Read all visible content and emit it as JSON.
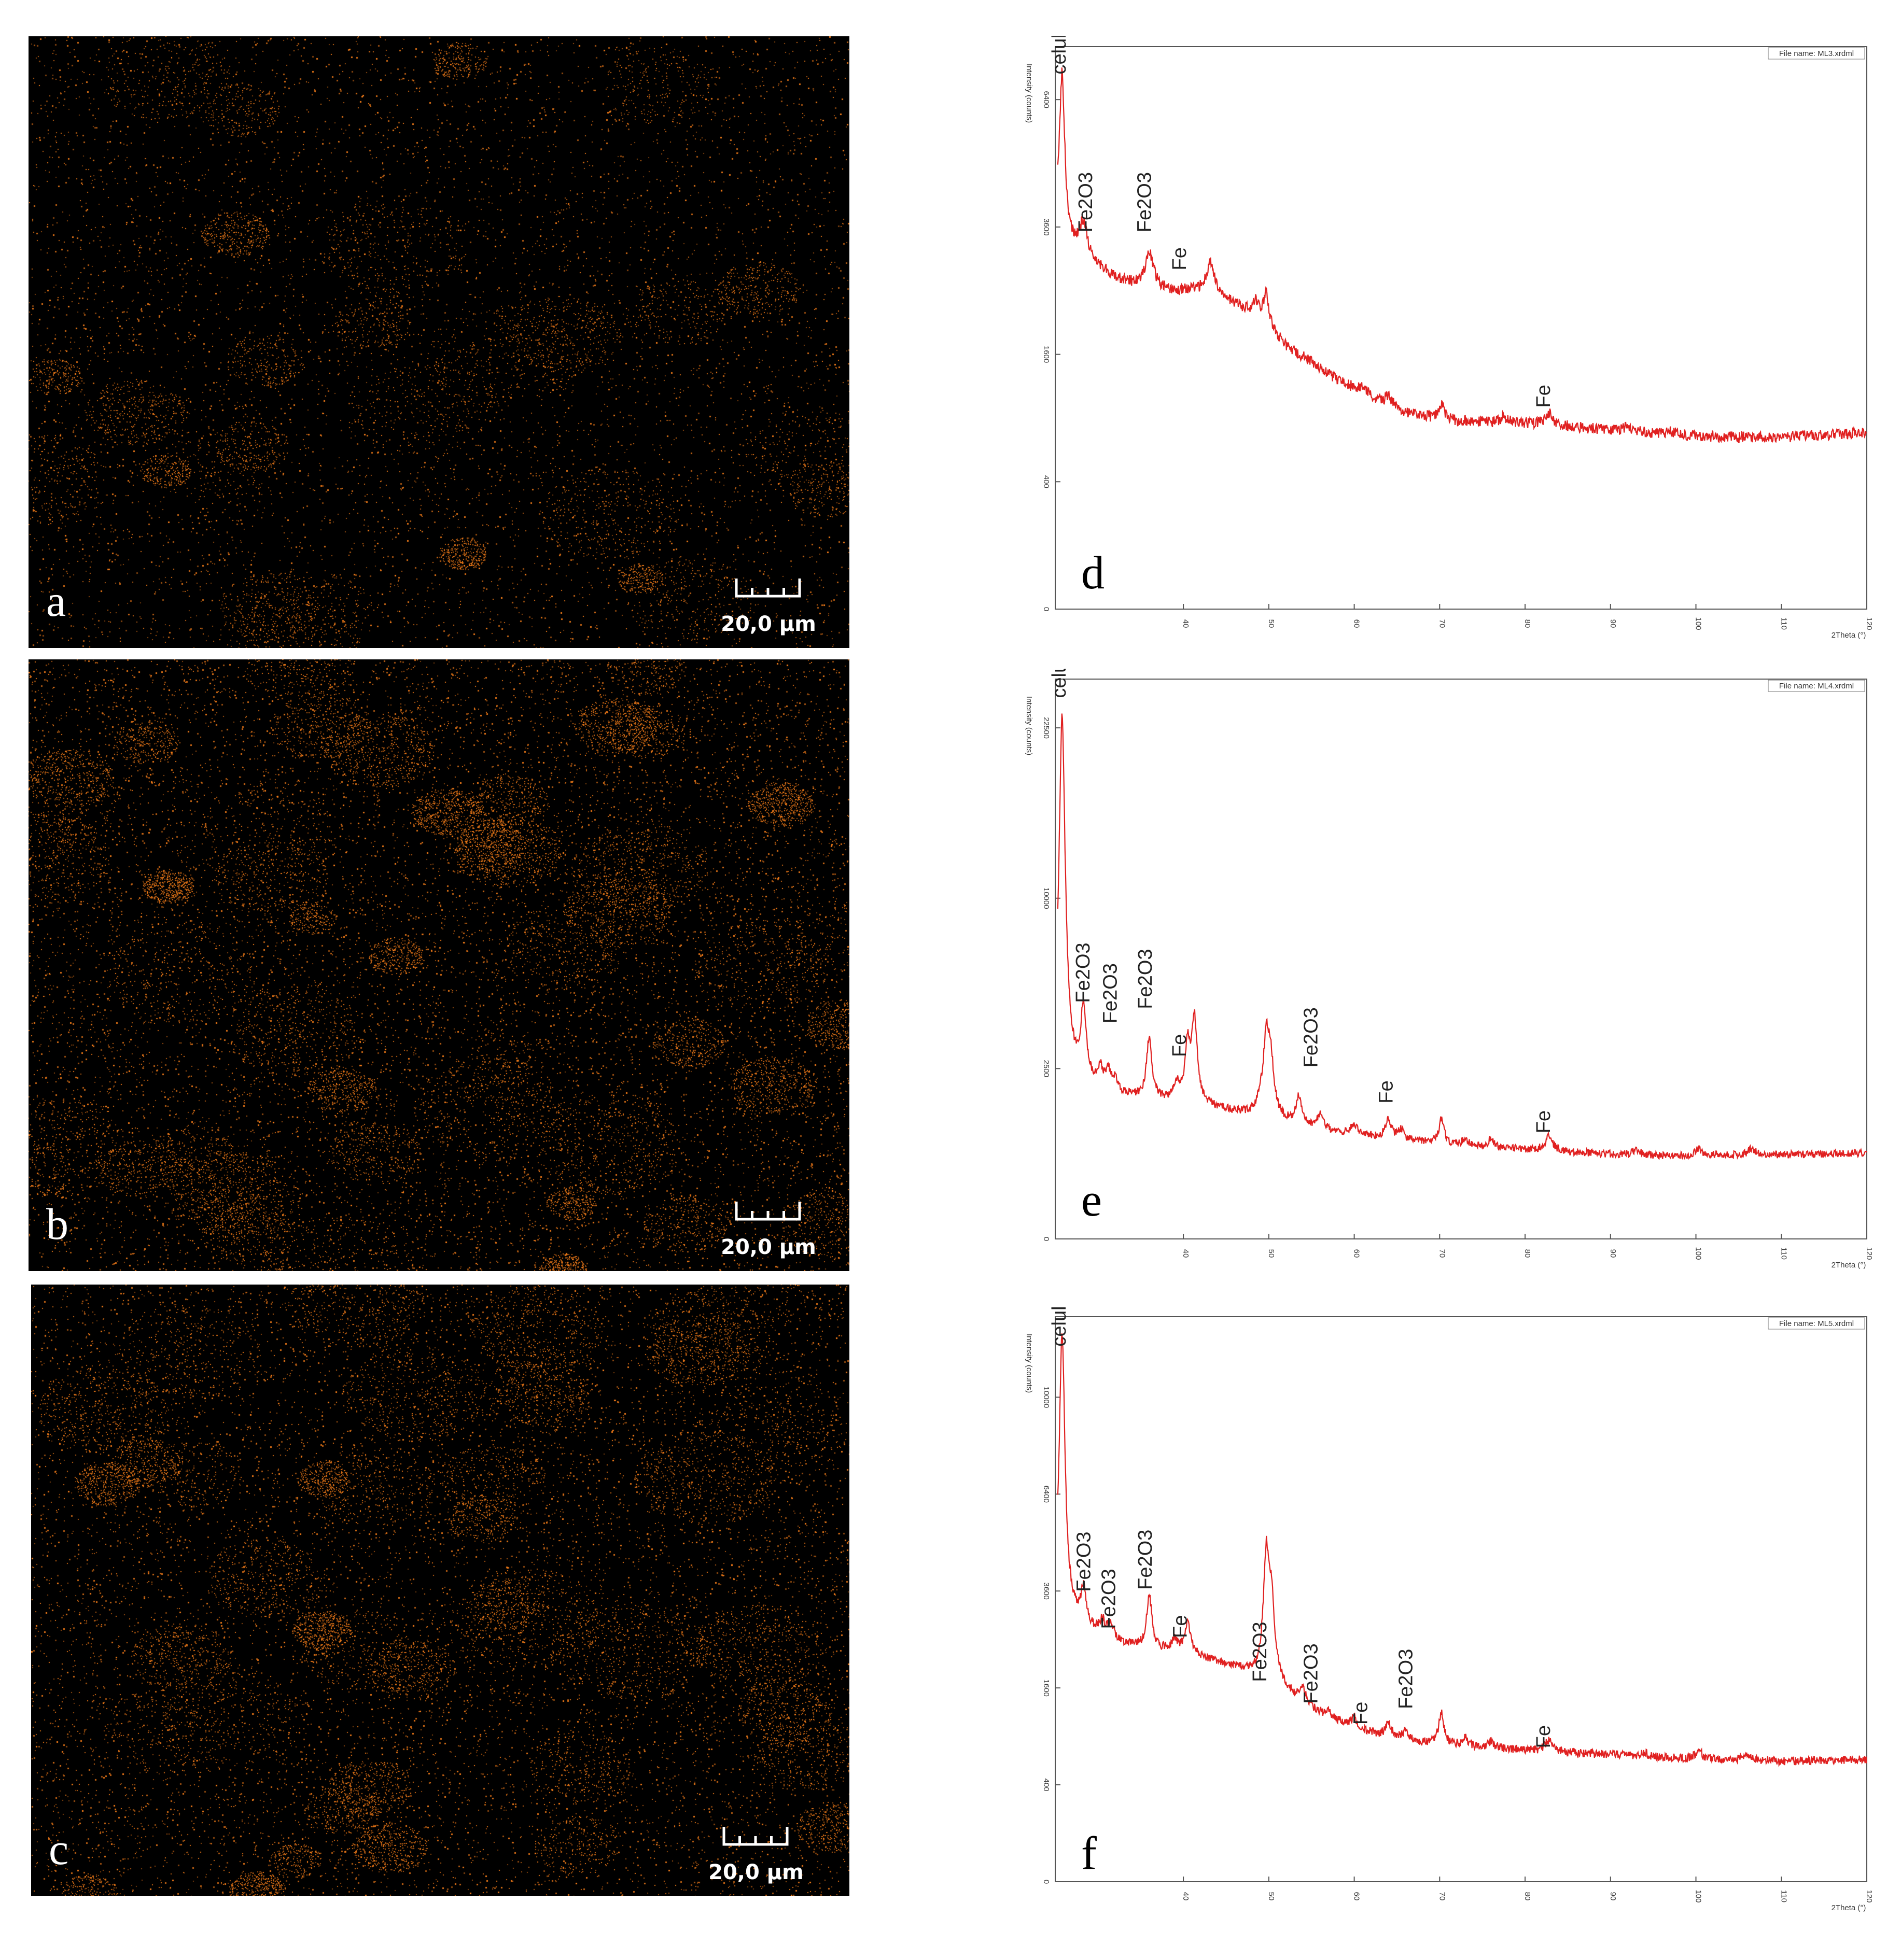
{
  "maps": [
    {
      "letter": "a",
      "scale": "20,0 µm",
      "density": 0.55,
      "color": "#f07a18"
    },
    {
      "letter": "b",
      "scale": "20,0 µm",
      "density": 1.0,
      "color": "#f07a18"
    },
    {
      "letter": "c",
      "scale": "20,0 µm",
      "density": 0.9,
      "color": "#f07a18"
    }
  ],
  "chart_data": [
    {
      "type": "line",
      "panel": "d",
      "file_name": "File name: ML3.xrdml",
      "ylabel": "Intensity (counts)",
      "xlabel": "2Theta (°)",
      "xlim": [
        25,
        120
      ],
      "ylim": [
        0,
        7800
      ],
      "scale": "sqrt",
      "x_ticks": [
        40,
        50,
        60,
        70,
        80,
        90,
        100,
        110,
        120
      ],
      "x_tick_labels": [
        "40",
        "50",
        "60",
        "70",
        "80",
        "90",
        "100",
        "110",
        "120"
      ],
      "y_ticks": [
        0,
        400,
        1600,
        3600,
        6400
      ],
      "y_tick_labels": [
        "0",
        "400",
        "1600",
        "3600",
        "6400"
      ],
      "series": [
        {
          "color": "#e02020",
          "background": [
            [
              25,
              3700
            ],
            [
              26,
              3300
            ],
            [
              28,
              3100
            ],
            [
              30,
              2900
            ],
            [
              32,
              2700
            ],
            [
              35,
              2550
            ],
            [
              38,
              2500
            ],
            [
              40,
              2500
            ],
            [
              43,
              2500
            ],
            [
              46,
              2300
            ],
            [
              48,
              2150
            ],
            [
              50,
              1950
            ],
            [
              52,
              1700
            ],
            [
              55,
              1500
            ],
            [
              58,
              1300
            ],
            [
              62,
              1100
            ],
            [
              66,
              950
            ],
            [
              70,
              880
            ],
            [
              75,
              860
            ],
            [
              80,
              850
            ],
            [
              85,
              820
            ],
            [
              90,
              790
            ],
            [
              95,
              760
            ],
            [
              100,
              740
            ],
            [
              105,
              730
            ],
            [
              110,
              730
            ],
            [
              115,
              745
            ],
            [
              120,
              770
            ]
          ],
          "peaks": [
            [
              25.8,
              3700,
              0.35
            ],
            [
              28.3,
              600,
              0.5
            ],
            [
              36.0,
              600,
              0.6
            ],
            [
              43.2,
              500,
              0.5
            ],
            [
              48.5,
              220,
              0.4
            ],
            [
              49.7,
              500,
              0.35
            ],
            [
              61.0,
              80,
              0.5
            ],
            [
              64.0,
              90,
              0.5
            ],
            [
              70.2,
              160,
              0.4
            ],
            [
              77.5,
              60,
              0.5
            ],
            [
              82.8,
              110,
              0.6
            ],
            [
              92.0,
              40,
              0.6
            ],
            [
              97.0,
              40,
              0.6
            ]
          ],
          "noise": 55
        }
      ],
      "annotations": [
        {
          "text": "celuloza",
          "x": 26.2,
          "y": 7050
        },
        {
          "text": "Fe2O3",
          "x": 29.3,
          "y": 3500
        },
        {
          "text": "Fe2O3",
          "x": 36.2,
          "y": 3500
        },
        {
          "text": "Fe",
          "x": 40.3,
          "y": 2830
        },
        {
          "text": "Fe",
          "x": 82.9,
          "y": 1000
        }
      ]
    },
    {
      "type": "line",
      "panel": "e",
      "file_name": "File name: ML4.xrdml",
      "ylabel": "Intensity (counts)",
      "xlabel": "2Theta (°)",
      "xlim": [
        25,
        120
      ],
      "ylim": [
        0,
        27000
      ],
      "scale": "sqrt",
      "x_ticks": [
        40,
        50,
        60,
        70,
        80,
        90,
        100,
        110,
        120
      ],
      "x_tick_labels": [
        "40",
        "50",
        "60",
        "70",
        "80",
        "90",
        "100",
        "110",
        "120"
      ],
      "y_ticks": [
        0,
        2500,
        10000,
        22500
      ],
      "y_tick_labels": [
        "0",
        "2500",
        "10000",
        "22500"
      ],
      "series": [
        {
          "color": "#e02020",
          "background": [
            [
              25,
              2200
            ],
            [
              27,
              2050
            ],
            [
              30,
              1900
            ],
            [
              33,
              1750
            ],
            [
              36,
              1650
            ],
            [
              40,
              1580
            ],
            [
              44,
              1450
            ],
            [
              47,
              1350
            ],
            [
              50,
              1250
            ],
            [
              54,
              1100
            ],
            [
              58,
              980
            ],
            [
              62,
              900
            ],
            [
              66,
              830
            ],
            [
              70,
              780
            ],
            [
              75,
              720
            ],
            [
              80,
              690
            ],
            [
              85,
              650
            ],
            [
              90,
              620
            ],
            [
              95,
              600
            ],
            [
              100,
              600
            ],
            [
              105,
              605
            ],
            [
              110,
              610
            ],
            [
              115,
              620
            ],
            [
              120,
              640
            ]
          ],
          "peaks": [
            [
              25.8,
              21500,
              0.35
            ],
            [
              28.3,
              2500,
              0.35
            ],
            [
              30.3,
              500,
              0.35
            ],
            [
              31.2,
              500,
              0.35
            ],
            [
              32.0,
              300,
              0.35
            ],
            [
              36.0,
              1800,
              0.35
            ],
            [
              39.2,
              400,
              0.4
            ],
            [
              40.5,
              1600,
              0.35
            ],
            [
              41.3,
              2600,
              0.35
            ],
            [
              49.0,
              300,
              0.35
            ],
            [
              49.7,
              2100,
              0.35
            ],
            [
              50.2,
              1500,
              0.4
            ],
            [
              53.5,
              600,
              0.35
            ],
            [
              56.0,
              300,
              0.35
            ],
            [
              60.0,
              200,
              0.4
            ],
            [
              64.0,
              350,
              0.4
            ],
            [
              65.5,
              180,
              0.4
            ],
            [
              70.2,
              450,
              0.35
            ],
            [
              73.0,
              120,
              0.4
            ],
            [
              76.0,
              150,
              0.4
            ],
            [
              82.8,
              250,
              0.5
            ],
            [
              93.0,
              80,
              0.5
            ],
            [
              100.3,
              100,
              0.5
            ],
            [
              106.5,
              90,
              0.5
            ]
          ],
          "noise": 70
        }
      ],
      "annotations": [
        {
          "text": "celuloza",
          "x": 26.2,
          "y": 25200
        },
        {
          "text": "Fe2O3",
          "x": 29.0,
          "y": 4800
        },
        {
          "text": "Fe2O3",
          "x": 32.2,
          "y": 4000
        },
        {
          "text": "Fe2O3",
          "x": 36.3,
          "y": 4550
        },
        {
          "text": "Fe",
          "x": 40.3,
          "y": 2850
        },
        {
          "text": "Fe2O3",
          "x": 55.7,
          "y": 2530
        },
        {
          "text": "Fe",
          "x": 64.5,
          "y": 1580
        },
        {
          "text": "Fe",
          "x": 82.9,
          "y": 960
        }
      ]
    },
    {
      "type": "line",
      "panel": "f",
      "file_name": "File name: ML5.xrdml",
      "ylabel": "Intensity (counts)",
      "xlabel": "2Theta (°)",
      "xlim": [
        25,
        120
      ],
      "ylim": [
        0,
        13600
      ],
      "scale": "sqrt",
      "x_ticks": [
        40,
        50,
        60,
        70,
        80,
        90,
        100,
        110,
        120
      ],
      "x_tick_labels": [
        "40",
        "50",
        "60",
        "70",
        "80",
        "90",
        "100",
        "110",
        "120"
      ],
      "y_ticks": [
        0,
        400,
        1600,
        3600,
        6400,
        10000
      ],
      "y_tick_labels": [
        "0",
        "400",
        "1600",
        "3600",
        "6400",
        "10000"
      ],
      "series": [
        {
          "color": "#e02020",
          "background": [
            [
              25,
              3100
            ],
            [
              27,
              2900
            ],
            [
              30,
              2600
            ],
            [
              33,
              2400
            ],
            [
              36,
              2300
            ],
            [
              40,
              2250
            ],
            [
              44,
              2050
            ],
            [
              47,
              1900
            ],
            [
              50,
              1750
            ],
            [
              53,
              1450
            ],
            [
              56,
              1200
            ],
            [
              60,
              1000
            ],
            [
              64,
              880
            ],
            [
              68,
              820
            ],
            [
              72,
              790
            ],
            [
              76,
              760
            ],
            [
              80,
              740
            ],
            [
              85,
              710
            ],
            [
              90,
              690
            ],
            [
              95,
              660
            ],
            [
              100,
              640
            ],
            [
              105,
              630
            ],
            [
              110,
              620
            ],
            [
              115,
              630
            ],
            [
              120,
              640
            ]
          ],
          "peaks": [
            [
              25.8,
              9800,
              0.35
            ],
            [
              28.3,
              800,
              0.35
            ],
            [
              30.5,
              300,
              0.4
            ],
            [
              31.5,
              300,
              0.4
            ],
            [
              36.0,
              1200,
              0.35
            ],
            [
              39.0,
              200,
              0.4
            ],
            [
              40.5,
              600,
              0.4
            ],
            [
              49.7,
              2700,
              0.35
            ],
            [
              50.3,
              1600,
              0.4
            ],
            [
              54.0,
              200,
              0.4
            ],
            [
              57.0,
              80,
              0.4
            ],
            [
              60.0,
              150,
              0.4
            ],
            [
              64.0,
              200,
              0.4
            ],
            [
              66.0,
              120,
              0.4
            ],
            [
              70.2,
              400,
              0.35
            ],
            [
              73.0,
              100,
              0.4
            ],
            [
              76.0,
              80,
              0.4
            ],
            [
              82.8,
              130,
              0.5
            ],
            [
              94.0,
              40,
              0.5
            ],
            [
              100.3,
              90,
              0.5
            ],
            [
              106.0,
              70,
              0.5
            ]
          ],
          "noise": 55
        }
      ],
      "annotations": [
        {
          "text": "celuloza",
          "x": 26.2,
          "y": 12200
        },
        {
          "text": "Fe2O3",
          "x": 29.1,
          "y": 3580
        },
        {
          "text": "Fe2O3",
          "x": 32.0,
          "y": 2720
        },
        {
          "text": "Fe2O3",
          "x": 36.3,
          "y": 3630
        },
        {
          "text": "Fe",
          "x": 40.4,
          "y": 2530
        },
        {
          "text": "Fe2O3",
          "x": 49.7,
          "y": 1700
        },
        {
          "text": "Fe2O3",
          "x": 55.7,
          "y": 1350
        },
        {
          "text": "Fe",
          "x": 61.5,
          "y": 1050
        },
        {
          "text": "Fe2O3",
          "x": 66.8,
          "y": 1270
        },
        {
          "text": "Fe",
          "x": 82.9,
          "y": 760
        }
      ]
    }
  ]
}
